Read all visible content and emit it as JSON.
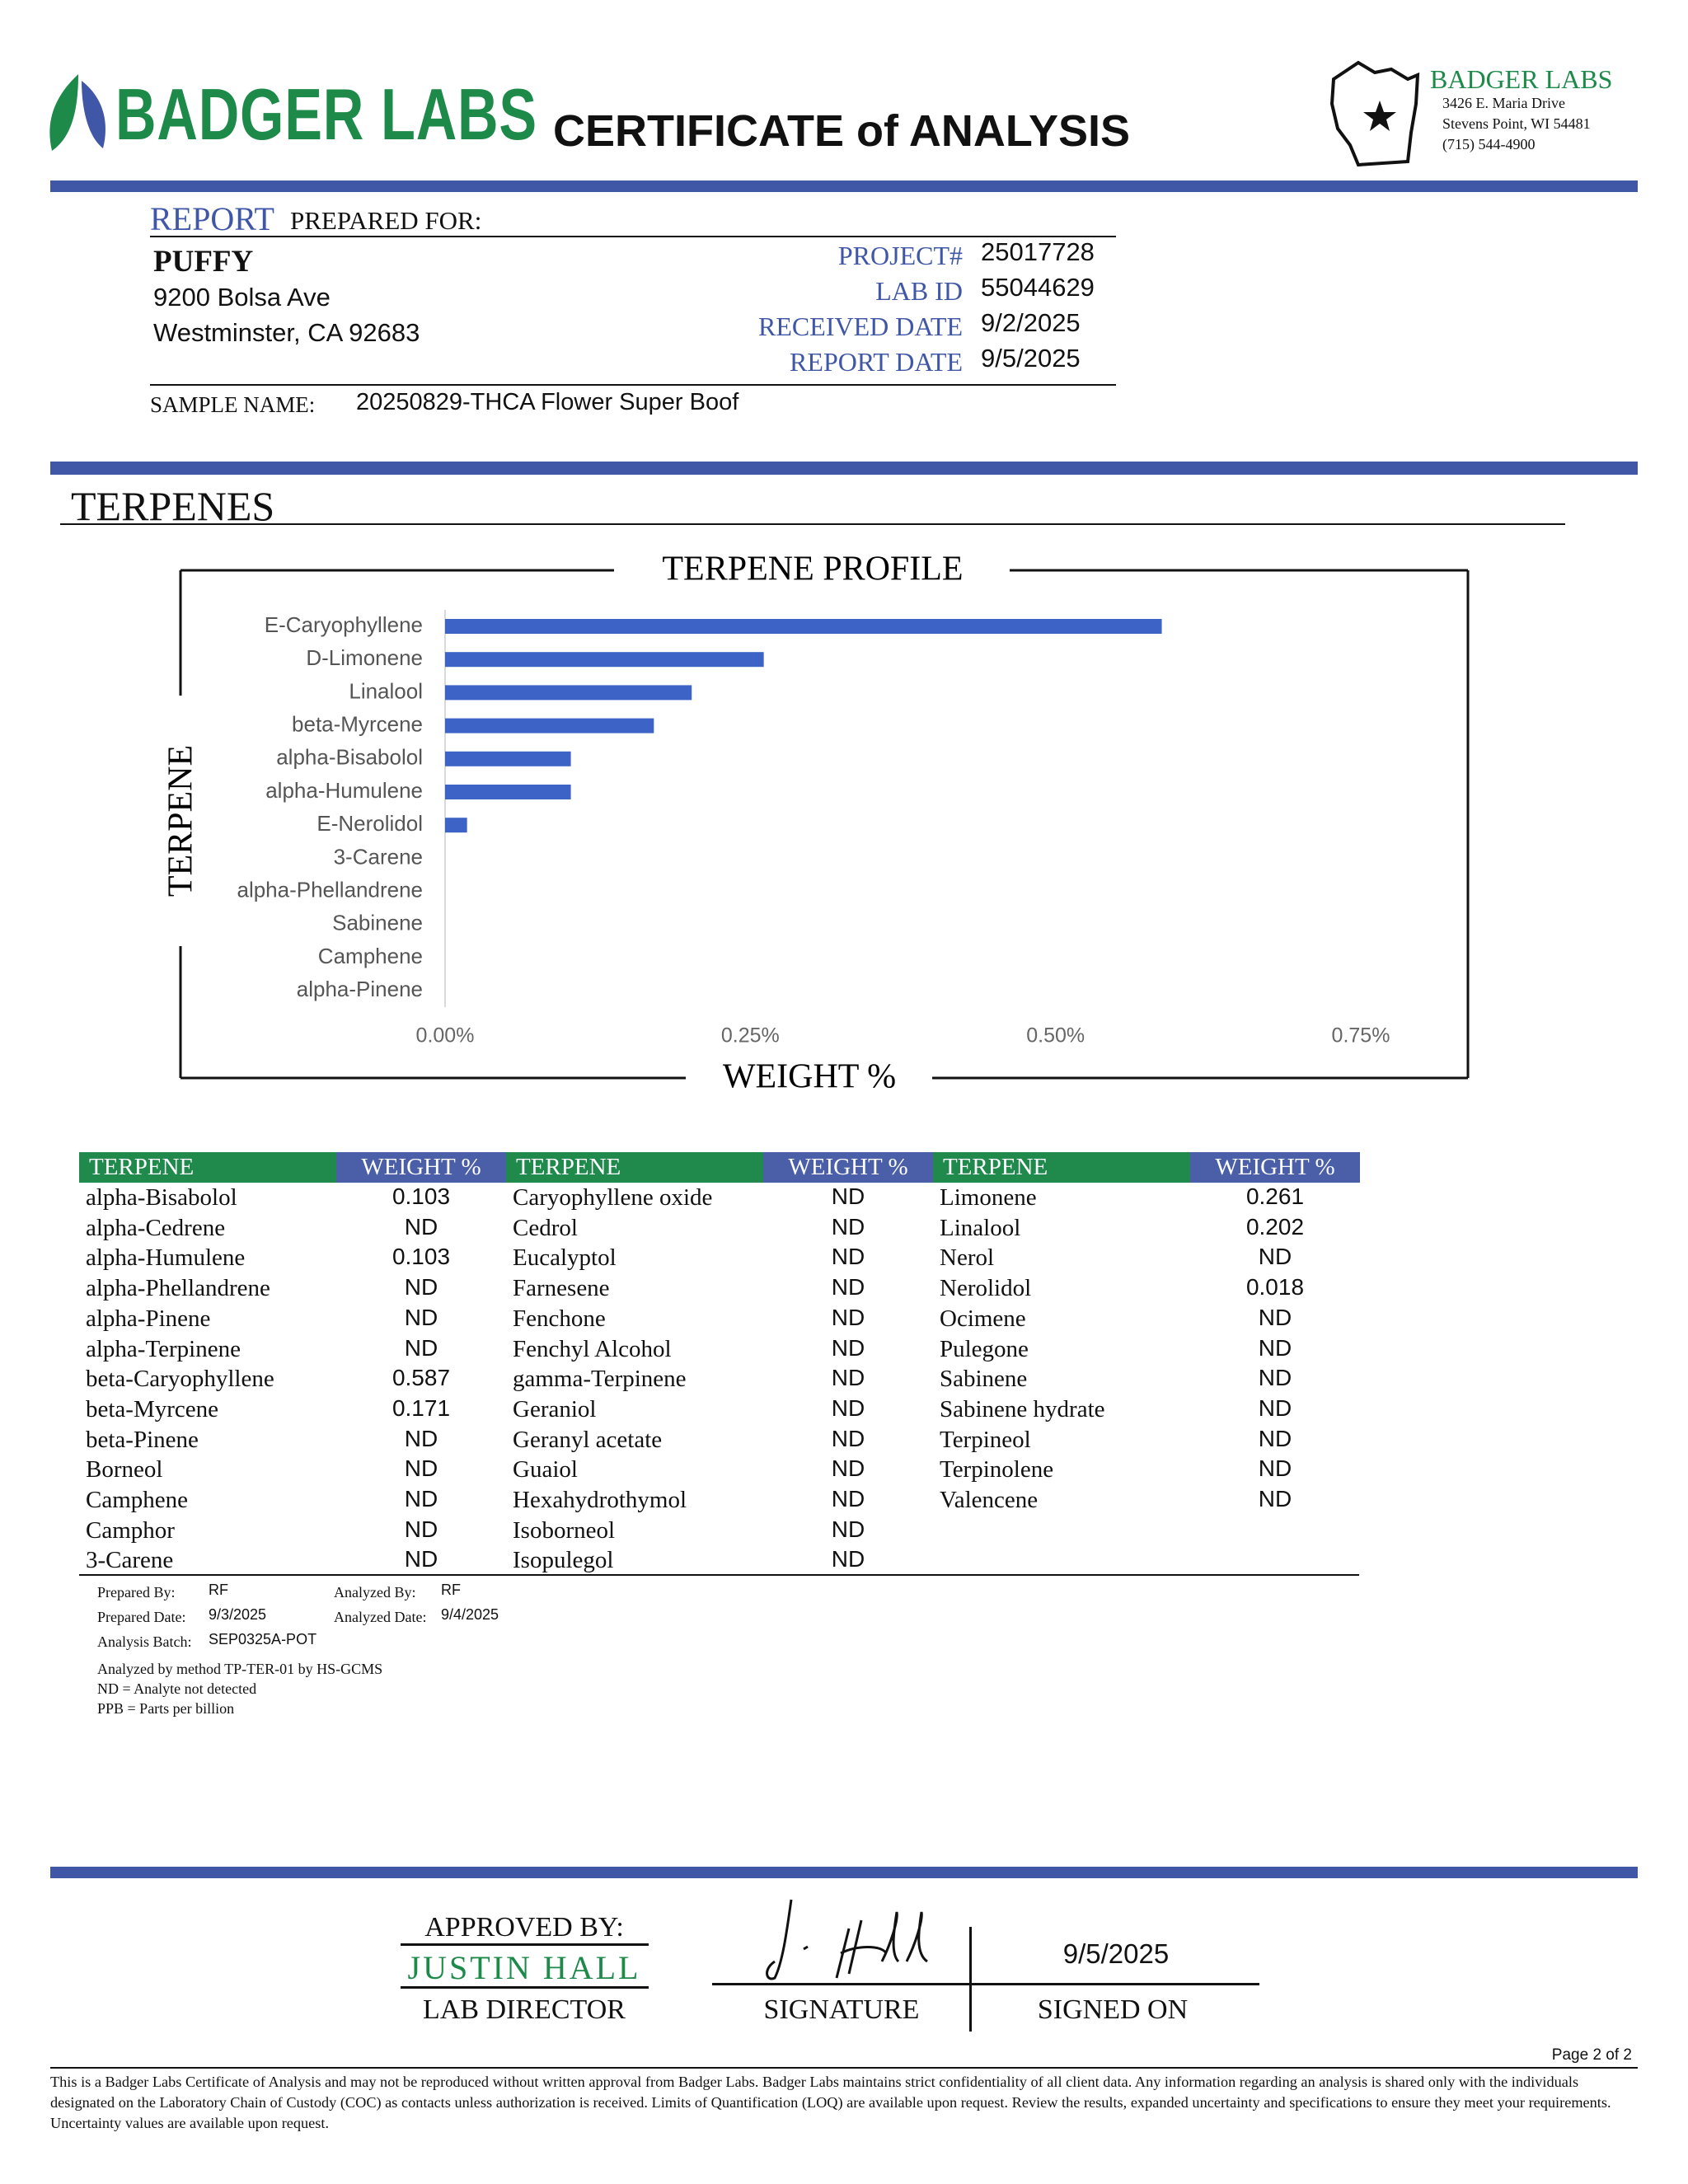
{
  "header": {
    "logo_text": "BADGER LABS",
    "title": "CERTIFICATE of ANALYSIS",
    "lab_name": "BADGER LABS",
    "address_lines": [
      "3426 E. Maria Drive",
      "Stevens Point, WI 54481",
      "(715) 544-4900"
    ]
  },
  "report": {
    "heading_accent": "REPORT",
    "heading_rest": "PREPARED FOR:",
    "client_name": "PUFFY",
    "client_address": [
      "9200 Bolsa Ave",
      "Westminster, CA 92683"
    ],
    "fields": [
      {
        "label": "PROJECT#",
        "value": "25017728"
      },
      {
        "label": "LAB ID",
        "value": "55044629"
      },
      {
        "label": "RECEIVED DATE",
        "value": "9/2/2025"
      },
      {
        "label": "REPORT DATE",
        "value": "9/5/2025"
      }
    ],
    "sample_label": "SAMPLE NAME:",
    "sample_name": "20250829-THCA Flower Super Boof"
  },
  "section_title": "TERPENES",
  "chart_data": {
    "type": "bar",
    "orientation": "horizontal",
    "title": "TERPENE PROFILE",
    "x_label": "WEIGHT %",
    "y_label": "TERPENE",
    "categories": [
      "E-Caryophyllene",
      "D-Limonene",
      "Linalool",
      "beta-Myrcene",
      "alpha-Bisabolol",
      "alpha-Humulene",
      "E-Nerolidol",
      "3-Carene",
      "alpha-Phellandrene",
      "Sabinene",
      "Camphene",
      "alpha-Pinene"
    ],
    "values": [
      0.587,
      0.261,
      0.202,
      0.171,
      0.103,
      0.103,
      0.018,
      0,
      0,
      0,
      0,
      0
    ],
    "color": "#3d63c6",
    "xlim": [
      0,
      0.75
    ],
    "xticks": [
      {
        "value": 0,
        "label": "0.00%"
      },
      {
        "value": 0.25,
        "label": "0.25%"
      },
      {
        "value": 0.5,
        "label": "0.50%"
      },
      {
        "value": 0.75,
        "label": "0.75%"
      }
    ]
  },
  "table": {
    "headers": [
      "TERPENE",
      "WEIGHT %",
      "TERPENE",
      "WEIGHT %",
      "TERPENE",
      "WEIGHT %"
    ],
    "groups": [
      [
        [
          "alpha-Bisabolol",
          0.103
        ],
        [
          "alpha-Cedrene",
          "ND"
        ],
        [
          "alpha-Humulene",
          0.103
        ],
        [
          "alpha-Phellandrene",
          "ND"
        ],
        [
          "alpha-Pinene",
          "ND"
        ],
        [
          "alpha-Terpinene",
          "ND"
        ],
        [
          "beta-Caryophyllene",
          0.587
        ],
        [
          "beta-Myrcene",
          0.171
        ],
        [
          "beta-Pinene",
          "ND"
        ],
        [
          "Borneol",
          "ND"
        ],
        [
          "Camphene",
          "ND"
        ],
        [
          "Camphor",
          "ND"
        ],
        [
          "3-Carene",
          "ND"
        ]
      ],
      [
        [
          "Caryophyllene oxide",
          "ND"
        ],
        [
          "Cedrol",
          "ND"
        ],
        [
          "Eucalyptol",
          "ND"
        ],
        [
          "Farnesene",
          "ND"
        ],
        [
          "Fenchone",
          "ND"
        ],
        [
          "Fenchyl Alcohol",
          "ND"
        ],
        [
          "gamma-Terpinene",
          "ND"
        ],
        [
          "Geraniol",
          "ND"
        ],
        [
          "Geranyl acetate",
          "ND"
        ],
        [
          "Guaiol",
          "ND"
        ],
        [
          "Hexahydrothymol",
          "ND"
        ],
        [
          "Isoborneol",
          "ND"
        ],
        [
          "Isopulegol",
          "ND"
        ]
      ],
      [
        [
          "Limonene",
          0.261
        ],
        [
          "Linalool",
          0.202
        ],
        [
          "Nerol",
          "ND"
        ],
        [
          "Nerolidol",
          0.018
        ],
        [
          "Ocimene",
          "ND"
        ],
        [
          "Pulegone",
          "ND"
        ],
        [
          "Sabinene",
          "ND"
        ],
        [
          "Sabinene hydrate",
          "ND"
        ],
        [
          "Terpineol",
          "ND"
        ],
        [
          "Terpinolene",
          "ND"
        ],
        [
          "Valencene",
          "ND"
        ]
      ]
    ]
  },
  "meta": [
    [
      "Prepared By:",
      "RF"
    ],
    [
      "Analyzed By:",
      "RF"
    ],
    [
      "Prepared Date:",
      "9/3/2025"
    ],
    [
      "Analyzed Date:",
      "9/4/2025"
    ],
    [
      "Analysis Batch:",
      "SEP0325A-POT"
    ]
  ],
  "notes": [
    "Analyzed by method TP-TER-01 by HS-GCMS",
    "ND = Analyte not detected",
    "PPB = Parts per billion"
  ],
  "approval": {
    "approved_label": "APPROVED BY:",
    "name": "JUSTIN HALL",
    "role": "LAB DIRECTOR",
    "signature_label": "SIGNATURE",
    "signed_date": "9/5/2025",
    "signed_label": "SIGNED ON"
  },
  "footer": {
    "page": "Page 2 of 2",
    "disclaimer": "This is a Badger Labs Certificate of Analysis and may not be reproduced without written approval from Badger Labs. Badger Labs maintains strict confidentiality of all client data. Any information regarding an analysis is shared only with the individuals designated on the Laboratory Chain of Custody (COC) as contacts unless authorization is received. Limits of Quantification (LOQ) are available upon request. Review the results, expanded uncertainty and specifications to ensure they meet your requirements. Uncertainty values are available upon request."
  }
}
